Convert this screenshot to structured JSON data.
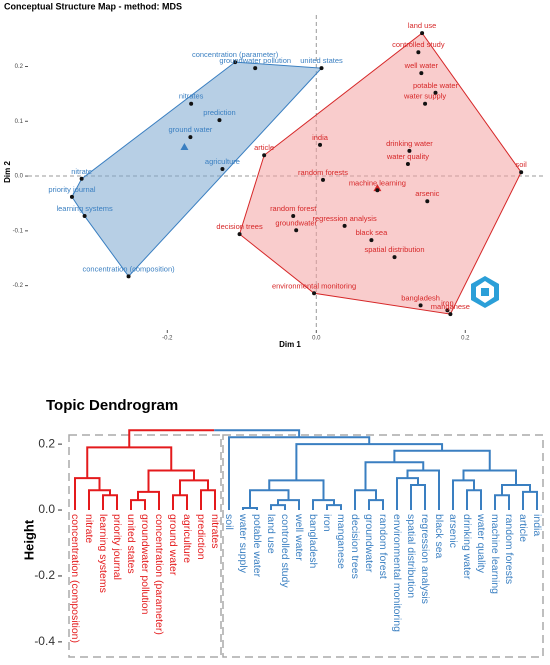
{
  "chart_data": [
    {
      "type": "scatter",
      "title": "Conceptual Structure Map - method: MDS",
      "x_label": "Dim 1",
      "y_label": "Dim 2",
      "xlim": [
        -0.387,
        0.307
      ],
      "ylim": [
        -0.281,
        0.294
      ],
      "xticks": [
        -0.2,
        {
          "value": 0,
          "label": "0.0"
        },
        0.2
      ],
      "yticks": [
        -0.2,
        -0.1,
        {
          "value": 0,
          "label": "0.0"
        },
        0.1,
        0.2
      ],
      "series": [
        {
          "color": "#3a7fc1",
          "fill": "#7ba7cf",
          "centroid_x": -0.177,
          "centroid_y": 0.053,
          "labels": [
            "concentration (parameter)",
            "groundwater pollution",
            "united states",
            "nitrates",
            "prediction",
            "ground water",
            "agriculture",
            "nitrate",
            "priority journal",
            "learning systems",
            "concentration (composition)"
          ],
          "x": [
            -0.109,
            -0.082,
            0.007,
            -0.168,
            -0.13,
            -0.169,
            -0.126,
            -0.315,
            -0.328,
            -0.311,
            -0.252
          ],
          "values": [
            0.208,
            0.197,
            0.197,
            0.132,
            0.102,
            0.071,
            0.013,
            -0.005,
            -0.038,
            -0.073,
            -0.183
          ]
        },
        {
          "color": "#d62728",
          "fill": "#f4a3a3",
          "centroid_x": 0.082,
          "centroid_y": -0.022,
          "labels": [
            "land use",
            "controlled study",
            "well water",
            "potable water",
            "water supply",
            "india",
            "drinking water",
            "water quality",
            "article",
            "soil",
            "random forests",
            "machine learning",
            "arsenic",
            "random forest",
            "decision trees",
            "groundwater",
            "regression analysis",
            "black sea",
            "spatial distribution",
            "environmental monitoring",
            "bangladesh",
            "iron",
            "manganese"
          ],
          "x": [
            0.142,
            0.137,
            0.141,
            0.16,
            0.146,
            0.005,
            0.125,
            0.123,
            -0.07,
            0.275,
            0.009,
            0.082,
            0.149,
            -0.031,
            -0.103,
            -0.027,
            0.038,
            0.074,
            0.105,
            -0.003,
            0.14,
            0.176,
            0.18
          ],
          "values": [
            0.261,
            0.226,
            0.188,
            0.152,
            0.132,
            0.057,
            0.046,
            0.022,
            0.038,
            0.007,
            -0.007,
            -0.026,
            -0.046,
            -0.073,
            -0.106,
            -0.099,
            -0.091,
            -0.117,
            -0.148,
            -0.214,
            -0.236,
            -0.245,
            -0.252
          ]
        }
      ]
    },
    {
      "type": "dendrogram",
      "title": "Topic Dendrogram",
      "y_label": "Height",
      "ylim": [
        -0.455,
        0.258
      ],
      "yticks": [
        {
          "value": 0.2,
          "label": "0.2"
        },
        {
          "value": 0,
          "label": "0.0"
        },
        -0.2,
        -0.4
      ],
      "clusters": [
        {
          "color": "#e41a1c",
          "labels": [
            "concentration (composition)",
            "nitrate",
            "learning systems",
            "priority journal",
            "united states",
            "groundwater pollution",
            "concentration (parameter)",
            "ground water",
            "agriculture",
            "prediction",
            "nitrates"
          ]
        },
        {
          "color": "#3a7fc1",
          "labels": [
            "soil",
            "water supply",
            "potable water",
            "land use",
            "controlled study",
            "well water",
            "bangladesh",
            "iron",
            "manganese",
            "decision trees",
            "groundwater",
            "random forest",
            "environmental monitoring",
            "spatial distribution",
            "regression analysis",
            "black sea",
            "arsenic",
            "drinking water",
            "water quality",
            "machine learning",
            "random forests",
            "article",
            "india"
          ]
        }
      ],
      "merges": [
        [
          -3,
          -4,
          0.045
        ],
        [
          -2,
          1,
          0.06
        ],
        [
          -1,
          2,
          0.097
        ],
        [
          -5,
          -6,
          0.03
        ],
        [
          4,
          -7,
          0.055
        ],
        [
          -8,
          -9,
          0.045
        ],
        [
          -10,
          -11,
          0.06
        ],
        [
          6,
          7,
          0.09
        ],
        [
          5,
          8,
          0.12
        ],
        [
          3,
          9,
          0.19
        ],
        [
          -13,
          -14,
          0.006
        ],
        [
          -15,
          -16,
          0.015
        ],
        [
          12,
          -17,
          0.03
        ],
        [
          11,
          13,
          0.06
        ],
        [
          -19,
          -20,
          0.015
        ],
        [
          -18,
          15,
          0.03
        ],
        [
          14,
          16,
          0.09
        ],
        [
          -22,
          -23,
          0.03
        ],
        [
          -21,
          18,
          0.06
        ],
        [
          -25,
          -26,
          0.076
        ],
        [
          -24,
          20,
          0.097
        ],
        [
          21,
          -27,
          0.12
        ],
        [
          19,
          22,
          0.145
        ],
        [
          -29,
          -30,
          0.06
        ],
        [
          -28,
          24,
          0.09
        ],
        [
          -31,
          -32,
          0.045
        ],
        [
          -33,
          -34,
          0.055
        ],
        [
          26,
          27,
          0.076
        ],
        [
          25,
          28,
          0.12
        ],
        [
          23,
          29,
          0.18
        ],
        [
          17,
          30,
          0.2
        ],
        [
          -12,
          31,
          0.221
        ],
        [
          10,
          32,
          0.242
        ]
      ]
    }
  ]
}
